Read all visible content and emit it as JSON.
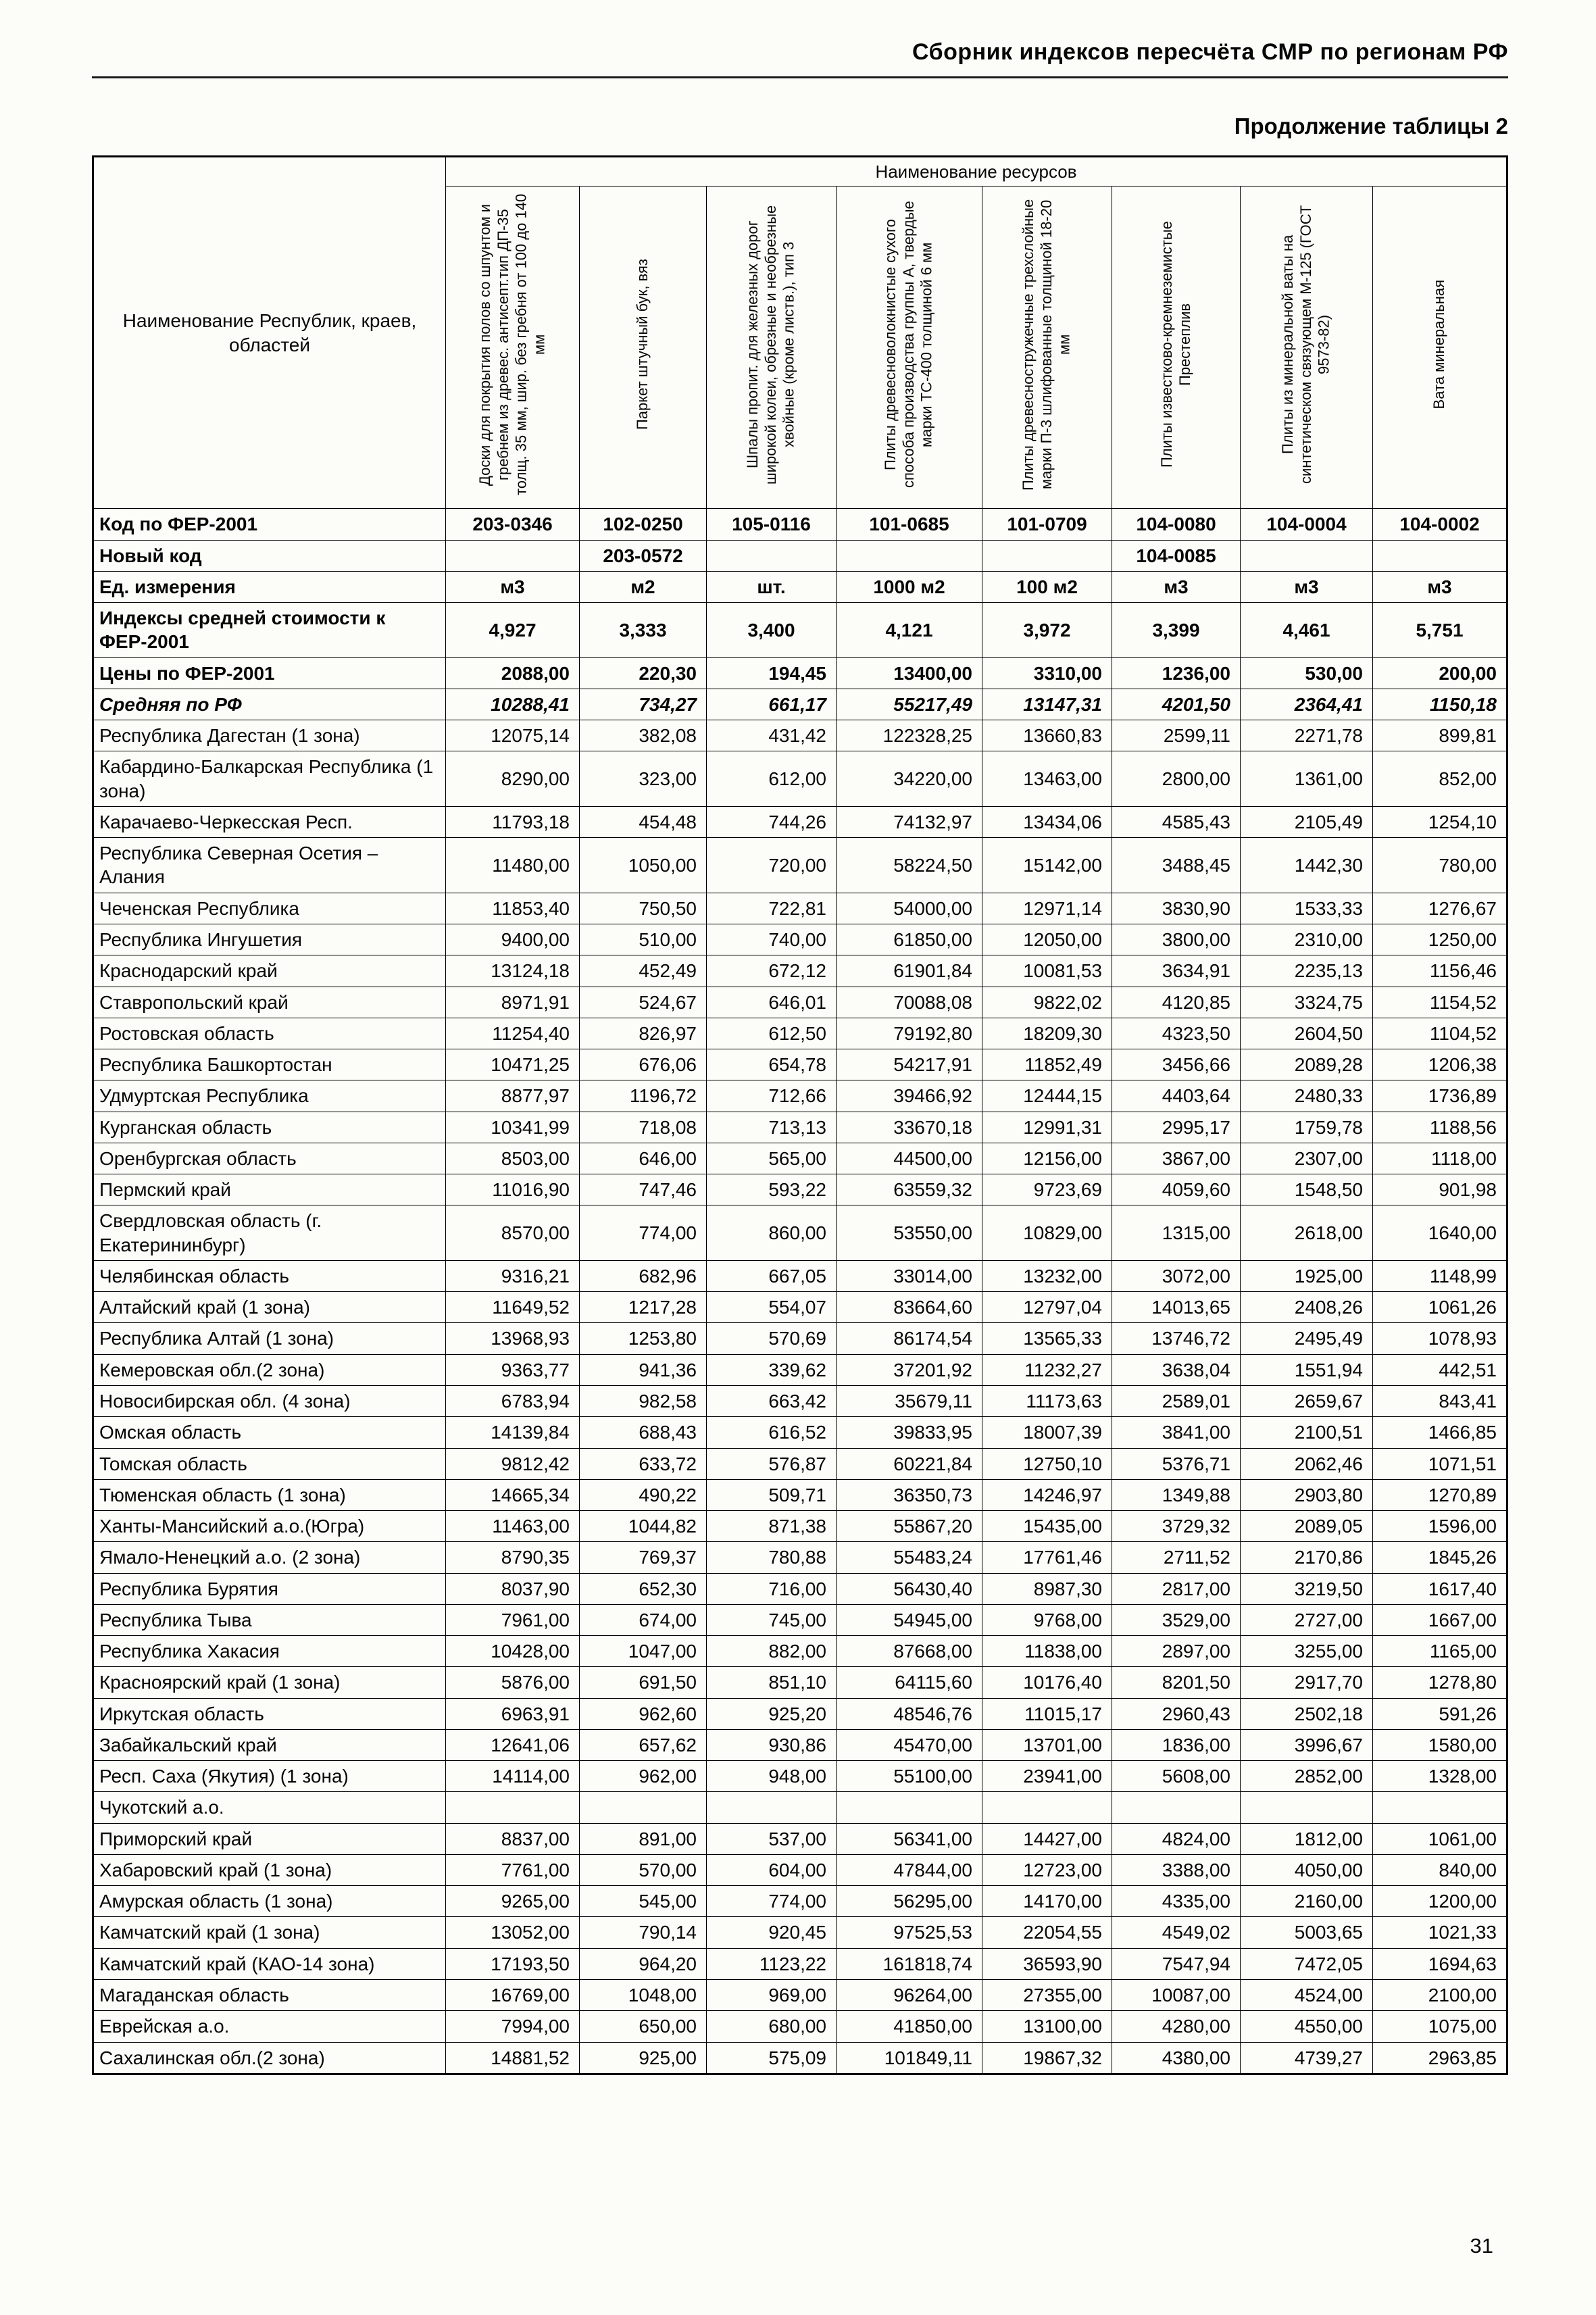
{
  "page": {
    "header": "Сборник индексов пересчёта СМР по регионам РФ",
    "subtitle": "Продолжение таблицы 2",
    "page_number": "31"
  },
  "table": {
    "resources_header": "Наименование ресурсов",
    "region_col_header": "Наименование Республик, краев, областей",
    "columns": [
      "Доски для покрытия полов со шпунтом и гребнем из древес. антисепт.тип ДП-35 толщ. 35 мм, шир. без гребня от 100 до 140 мм",
      "Паркет штучный бук, вяз",
      "Шпалы пропит. для железных дорог широкой колеи, обрезные и необрезные хвойные (кроме листв.), тип 3",
      "Плиты древесноволокнистые сухого способа производства группы А, твердые марки ТС-400 толщиной 6 мм",
      "Плиты древесностружечные трехслойные марки П-3 шлифованные толщиной 18-20 мм",
      "Плиты известково-кремнеземистые Престеплив",
      "Плиты из минеральной ваты на синтетическом связующем М-125 (ГОСТ 9573-82)",
      "Вата минеральная"
    ],
    "meta_rows": [
      {
        "label": "Код по ФЕР-2001",
        "align": "center",
        "bold": true,
        "italic": false,
        "values": [
          "203-0346",
          "102-0250",
          "105-0116",
          "101-0685",
          "101-0709",
          "104-0080",
          "104-0004",
          "104-0002"
        ]
      },
      {
        "label": "Новый код",
        "align": "center",
        "bold": true,
        "italic": false,
        "values": [
          "",
          "203-0572",
          "",
          "",
          "",
          "104-0085",
          "",
          ""
        ]
      },
      {
        "label": "Ед. измерения",
        "align": "center",
        "bold": true,
        "italic": false,
        "values": [
          "м3",
          "м2",
          "шт.",
          "1000 м2",
          "100 м2",
          "м3",
          "м3",
          "м3"
        ]
      },
      {
        "label": "Индексы средней стоимости к ФЕР-2001",
        "align": "center",
        "bold": true,
        "italic": false,
        "values": [
          "4,927",
          "3,333",
          "3,400",
          "4,121",
          "3,972",
          "3,399",
          "4,461",
          "5,751"
        ]
      },
      {
        "label": "Цены по ФЕР-2001",
        "align": "right",
        "bold": true,
        "italic": false,
        "values": [
          "2088,00",
          "220,30",
          "194,45",
          "13400,00",
          "3310,00",
          "1236,00",
          "530,00",
          "200,00"
        ]
      },
      {
        "label": "Средняя по РФ",
        "align": "right",
        "bold": true,
        "italic": true,
        "values": [
          "10288,41",
          "734,27",
          "661,17",
          "55217,49",
          "13147,31",
          "4201,50",
          "2364,41",
          "1150,18"
        ]
      }
    ],
    "rows": [
      {
        "name": "Республика Дагестан (1 зона)",
        "values": [
          "12075,14",
          "382,08",
          "431,42",
          "122328,25",
          "13660,83",
          "2599,11",
          "2271,78",
          "899,81"
        ]
      },
      {
        "name": "Кабардино-Балкарская Республика (1 зона)",
        "values": [
          "8290,00",
          "323,00",
          "612,00",
          "34220,00",
          "13463,00",
          "2800,00",
          "1361,00",
          "852,00"
        ]
      },
      {
        "name": "Карачаево-Черкесская Респ.",
        "values": [
          "11793,18",
          "454,48",
          "744,26",
          "74132,97",
          "13434,06",
          "4585,43",
          "2105,49",
          "1254,10"
        ]
      },
      {
        "name": "Республика Северная Осетия – Алания",
        "values": [
          "11480,00",
          "1050,00",
          "720,00",
          "58224,50",
          "15142,00",
          "3488,45",
          "1442,30",
          "780,00"
        ]
      },
      {
        "name": "Чеченская Республика",
        "values": [
          "11853,40",
          "750,50",
          "722,81",
          "54000,00",
          "12971,14",
          "3830,90",
          "1533,33",
          "1276,67"
        ]
      },
      {
        "name": "Республика Ингушетия",
        "values": [
          "9400,00",
          "510,00",
          "740,00",
          "61850,00",
          "12050,00",
          "3800,00",
          "2310,00",
          "1250,00"
        ]
      },
      {
        "name": "Краснодарский край",
        "values": [
          "13124,18",
          "452,49",
          "672,12",
          "61901,84",
          "10081,53",
          "3634,91",
          "2235,13",
          "1156,46"
        ]
      },
      {
        "name": "Ставропольский край",
        "values": [
          "8971,91",
          "524,67",
          "646,01",
          "70088,08",
          "9822,02",
          "4120,85",
          "3324,75",
          "1154,52"
        ]
      },
      {
        "name": "Ростовская область",
        "values": [
          "11254,40",
          "826,97",
          "612,50",
          "79192,80",
          "18209,30",
          "4323,50",
          "2604,50",
          "1104,52"
        ]
      },
      {
        "name": "Республика Башкортостан",
        "values": [
          "10471,25",
          "676,06",
          "654,78",
          "54217,91",
          "11852,49",
          "3456,66",
          "2089,28",
          "1206,38"
        ]
      },
      {
        "name": "Удмуртская Республика",
        "values": [
          "8877,97",
          "1196,72",
          "712,66",
          "39466,92",
          "12444,15",
          "4403,64",
          "2480,33",
          "1736,89"
        ]
      },
      {
        "name": "Курганская область",
        "values": [
          "10341,99",
          "718,08",
          "713,13",
          "33670,18",
          "12991,31",
          "2995,17",
          "1759,78",
          "1188,56"
        ]
      },
      {
        "name": "Оренбургская область",
        "values": [
          "8503,00",
          "646,00",
          "565,00",
          "44500,00",
          "12156,00",
          "3867,00",
          "2307,00",
          "1118,00"
        ]
      },
      {
        "name": "Пермский край",
        "values": [
          "11016,90",
          "747,46",
          "593,22",
          "63559,32",
          "9723,69",
          "4059,60",
          "1548,50",
          "901,98"
        ]
      },
      {
        "name": "Свердловская область (г. Екатерининбург)",
        "values": [
          "8570,00",
          "774,00",
          "860,00",
          "53550,00",
          "10829,00",
          "1315,00",
          "2618,00",
          "1640,00"
        ]
      },
      {
        "name": "Челябинская область",
        "values": [
          "9316,21",
          "682,96",
          "667,05",
          "33014,00",
          "13232,00",
          "3072,00",
          "1925,00",
          "1148,99"
        ]
      },
      {
        "name": "Алтайский край (1 зона)",
        "values": [
          "11649,52",
          "1217,28",
          "554,07",
          "83664,60",
          "12797,04",
          "14013,65",
          "2408,26",
          "1061,26"
        ]
      },
      {
        "name": "Республика Алтай (1 зона)",
        "values": [
          "13968,93",
          "1253,80",
          "570,69",
          "86174,54",
          "13565,33",
          "13746,72",
          "2495,49",
          "1078,93"
        ]
      },
      {
        "name": "Кемеровская обл.(2 зона)",
        "values": [
          "9363,77",
          "941,36",
          "339,62",
          "37201,92",
          "11232,27",
          "3638,04",
          "1551,94",
          "442,51"
        ]
      },
      {
        "name": "Новосибирская обл. (4 зона)",
        "values": [
          "6783,94",
          "982,58",
          "663,42",
          "35679,11",
          "11173,63",
          "2589,01",
          "2659,67",
          "843,41"
        ]
      },
      {
        "name": "Омская область",
        "values": [
          "14139,84",
          "688,43",
          "616,52",
          "39833,95",
          "18007,39",
          "3841,00",
          "2100,51",
          "1466,85"
        ]
      },
      {
        "name": "Томская область",
        "values": [
          "9812,42",
          "633,72",
          "576,87",
          "60221,84",
          "12750,10",
          "5376,71",
          "2062,46",
          "1071,51"
        ]
      },
      {
        "name": "Тюменская область (1 зона)",
        "values": [
          "14665,34",
          "490,22",
          "509,71",
          "36350,73",
          "14246,97",
          "1349,88",
          "2903,80",
          "1270,89"
        ]
      },
      {
        "name": "Ханты-Мансийский а.о.(Югра)",
        "values": [
          "11463,00",
          "1044,82",
          "871,38",
          "55867,20",
          "15435,00",
          "3729,32",
          "2089,05",
          "1596,00"
        ]
      },
      {
        "name": "Ямало-Ненецкий а.о. (2 зона)",
        "values": [
          "8790,35",
          "769,37",
          "780,88",
          "55483,24",
          "17761,46",
          "2711,52",
          "2170,86",
          "1845,26"
        ]
      },
      {
        "name": "Республика Бурятия",
        "values": [
          "8037,90",
          "652,30",
          "716,00",
          "56430,40",
          "8987,30",
          "2817,00",
          "3219,50",
          "1617,40"
        ]
      },
      {
        "name": "Республика Тыва",
        "values": [
          "7961,00",
          "674,00",
          "745,00",
          "54945,00",
          "9768,00",
          "3529,00",
          "2727,00",
          "1667,00"
        ]
      },
      {
        "name": "Республика Хакасия",
        "values": [
          "10428,00",
          "1047,00",
          "882,00",
          "87668,00",
          "11838,00",
          "2897,00",
          "3255,00",
          "1165,00"
        ]
      },
      {
        "name": "Красноярский край (1 зона)",
        "values": [
          "5876,00",
          "691,50",
          "851,10",
          "64115,60",
          "10176,40",
          "8201,50",
          "2917,70",
          "1278,80"
        ]
      },
      {
        "name": "Иркутская область",
        "values": [
          "6963,91",
          "962,60",
          "925,20",
          "48546,76",
          "11015,17",
          "2960,43",
          "2502,18",
          "591,26"
        ]
      },
      {
        "name": "Забайкальский край",
        "values": [
          "12641,06",
          "657,62",
          "930,86",
          "45470,00",
          "13701,00",
          "1836,00",
          "3996,67",
          "1580,00"
        ]
      },
      {
        "name": "Респ. Саха (Якутия) (1 зона)",
        "values": [
          "14114,00",
          "962,00",
          "948,00",
          "55100,00",
          "23941,00",
          "5608,00",
          "2852,00",
          "1328,00"
        ]
      },
      {
        "name": "Чукотский а.о.",
        "values": [
          "",
          "",
          "",
          "",
          "",
          "",
          "",
          ""
        ]
      },
      {
        "name": "Приморский край",
        "values": [
          "8837,00",
          "891,00",
          "537,00",
          "56341,00",
          "14427,00",
          "4824,00",
          "1812,00",
          "1061,00"
        ]
      },
      {
        "name": "Хабаровский край (1 зона)",
        "values": [
          "7761,00",
          "570,00",
          "604,00",
          "47844,00",
          "12723,00",
          "3388,00",
          "4050,00",
          "840,00"
        ]
      },
      {
        "name": "Амурская область (1 зона)",
        "values": [
          "9265,00",
          "545,00",
          "774,00",
          "56295,00",
          "14170,00",
          "4335,00",
          "2160,00",
          "1200,00"
        ]
      },
      {
        "name": "Камчатский край (1 зона)",
        "values": [
          "13052,00",
          "790,14",
          "920,45",
          "97525,53",
          "22054,55",
          "4549,02",
          "5003,65",
          "1021,33"
        ]
      },
      {
        "name": "Камчатский край (КАО-14 зона)",
        "values": [
          "17193,50",
          "964,20",
          "1123,22",
          "161818,74",
          "36593,90",
          "7547,94",
          "7472,05",
          "1694,63"
        ]
      },
      {
        "name": "Магаданская область",
        "values": [
          "16769,00",
          "1048,00",
          "969,00",
          "96264,00",
          "27355,00",
          "10087,00",
          "4524,00",
          "2100,00"
        ]
      },
      {
        "name": "Еврейская а.о.",
        "values": [
          "7994,00",
          "650,00",
          "680,00",
          "41850,00",
          "13100,00",
          "4280,00",
          "4550,00",
          "1075,00"
        ]
      },
      {
        "name": "Сахалинская обл.(2 зона)",
        "values": [
          "14881,52",
          "925,00",
          "575,09",
          "101849,11",
          "19867,32",
          "4380,00",
          "4739,27",
          "2963,85"
        ]
      }
    ]
  }
}
